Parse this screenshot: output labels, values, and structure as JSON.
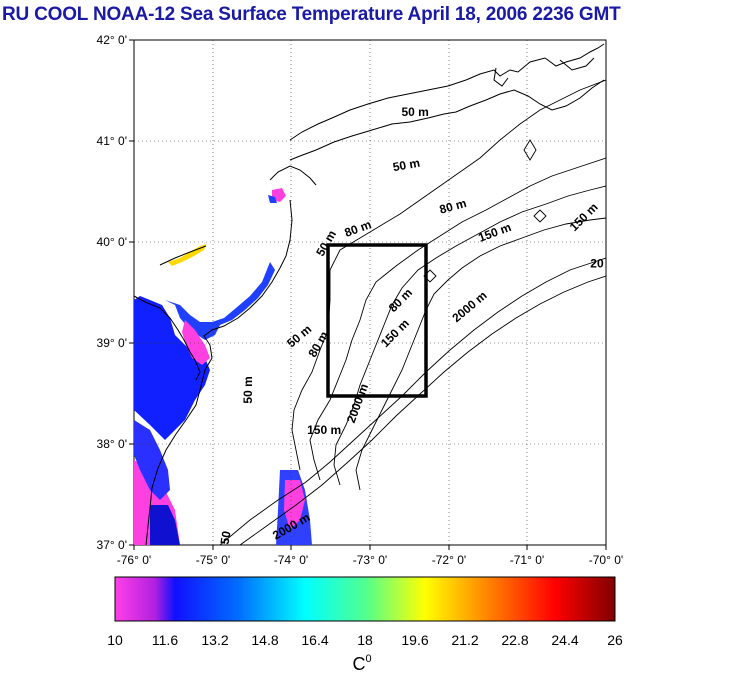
{
  "title": "RU COOL  NOAA-12 Sea Surface Temperature April 18, 2006 2236 GMT",
  "map": {
    "lat_ticks": [
      "42° 0'",
      "41° 0'",
      "40° 0'",
      "39° 0'",
      "38° 0'",
      "37° 0'"
    ],
    "lon_ticks": [
      "-76° 0'",
      "-75° 0'",
      "-74° 0'",
      "-73° 0'",
      "-72° 0'",
      "-71° 0'",
      "-70° 0'"
    ],
    "contour_labels": [
      {
        "text": "50 m",
        "lon": -72.6,
        "lat": 41.25,
        "rot": 0
      },
      {
        "text": "50 m",
        "lon": -72.7,
        "lat": 40.7,
        "rot": -10
      },
      {
        "text": "80 m",
        "lon": -72.1,
        "lat": 40.28,
        "rot": -15
      },
      {
        "text": "150 m",
        "lon": -71.6,
        "lat": 40.0,
        "rot": -20
      },
      {
        "text": "150 m",
        "lon": -70.4,
        "lat": 40.1,
        "rot": -45
      },
      {
        "text": "20",
        "lon": -70.2,
        "lat": 39.75,
        "rot": 0
      },
      {
        "text": "80 m",
        "lon": -73.3,
        "lat": 40.05,
        "rot": -20
      },
      {
        "text": "50 m",
        "lon": -73.6,
        "lat": 39.85,
        "rot": -60
      },
      {
        "text": "80 m",
        "lon": -72.7,
        "lat": 39.3,
        "rot": -45
      },
      {
        "text": "150 m",
        "lon": -72.8,
        "lat": 38.95,
        "rot": -45
      },
      {
        "text": "2000 m",
        "lon": -71.9,
        "lat": 39.2,
        "rot": -40
      },
      {
        "text": "50 m",
        "lon": -74.0,
        "lat": 38.95,
        "rot": -40
      },
      {
        "text": "80 m",
        "lon": -73.7,
        "lat": 38.85,
        "rot": -60
      },
      {
        "text": "150 m",
        "lon": -73.8,
        "lat": 38.1,
        "rot": 0
      },
      {
        "text": "2000 m",
        "lon": -73.2,
        "lat": 38.2,
        "rot": -70
      },
      {
        "text": "50 m",
        "lon": -74.5,
        "lat": 38.4,
        "rot": -90
      },
      {
        "text": "2000 m",
        "lon": -74.2,
        "lat": 37.05,
        "rot": -30
      },
      {
        "text": "50",
        "lon": -74.8,
        "lat": 37.0,
        "rot": -80
      }
    ]
  },
  "colorbar": {
    "ticks": [
      "10",
      "11.6",
      "13.2",
      "14.8",
      "16.4",
      "18",
      "19.6",
      "21.2",
      "22.8",
      "24.4",
      "26"
    ],
    "label_base": "C",
    "label_sup": "0"
  },
  "colors": {
    "title": "#1a1aa6",
    "box": "#000000"
  }
}
